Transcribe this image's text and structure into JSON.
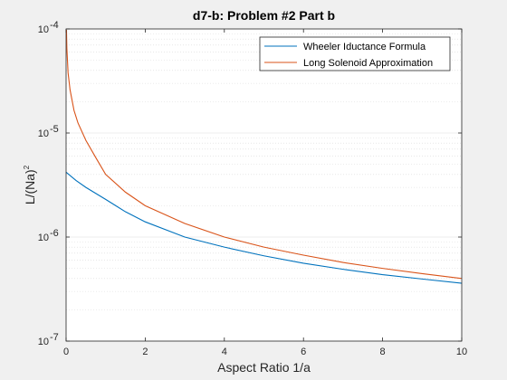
{
  "chart_data": {
    "type": "line",
    "title": "d7-b: Problem #2 Part b",
    "xlabel": "Aspect Ratio 1/a",
    "ylabel": "L/(Na)",
    "ylabel_sup": "2",
    "xlim": [
      0,
      10
    ],
    "ylim": [
      1e-07,
      0.0001
    ],
    "yscale": "log",
    "x_ticks": [
      0,
      2,
      4,
      6,
      8,
      10
    ],
    "y_ticks": [
      {
        "value": 1e-07,
        "base": "10",
        "exp": "-7"
      },
      {
        "value": 1e-06,
        "base": "10",
        "exp": "-6"
      },
      {
        "value": 1e-05,
        "base": "10",
        "exp": "-5"
      },
      {
        "value": 0.0001,
        "base": "10",
        "exp": "-4"
      }
    ],
    "grid": "y-minor-dotted",
    "legend_position": "top-right",
    "series": [
      {
        "name": "Wheeler Iductance Formula",
        "color": "#0072bd",
        "x": [
          0,
          0.25,
          0.5,
          1,
          1.5,
          2,
          3,
          4,
          5,
          6,
          7,
          8,
          9,
          10
        ],
        "y": [
          4.2e-06,
          3.5e-06,
          3e-06,
          2.3e-06,
          1.75e-06,
          1.4e-06,
          1e-06,
          8e-07,
          6.6e-07,
          5.6e-07,
          4.9e-07,
          4.35e-07,
          3.95e-07,
          3.6e-07
        ]
      },
      {
        "name": "Long Solenoid Approximation",
        "color": "#d95319",
        "x": [
          0.01,
          0.02,
          0.05,
          0.1,
          0.2,
          0.3,
          0.5,
          0.75,
          1,
          1.5,
          2,
          3,
          4,
          5,
          6,
          7,
          8,
          9,
          10
        ],
        "y": [
          9.8e-05,
          6.5e-05,
          3.8e-05,
          2.6e-05,
          1.65e-05,
          1.25e-05,
          8.5e-06,
          5.8e-06,
          4e-06,
          2.7e-06,
          2e-06,
          1.35e-06,
          1e-06,
          8e-07,
          6.7e-07,
          5.7e-07,
          5e-07,
          4.45e-07,
          4e-07
        ]
      }
    ]
  }
}
